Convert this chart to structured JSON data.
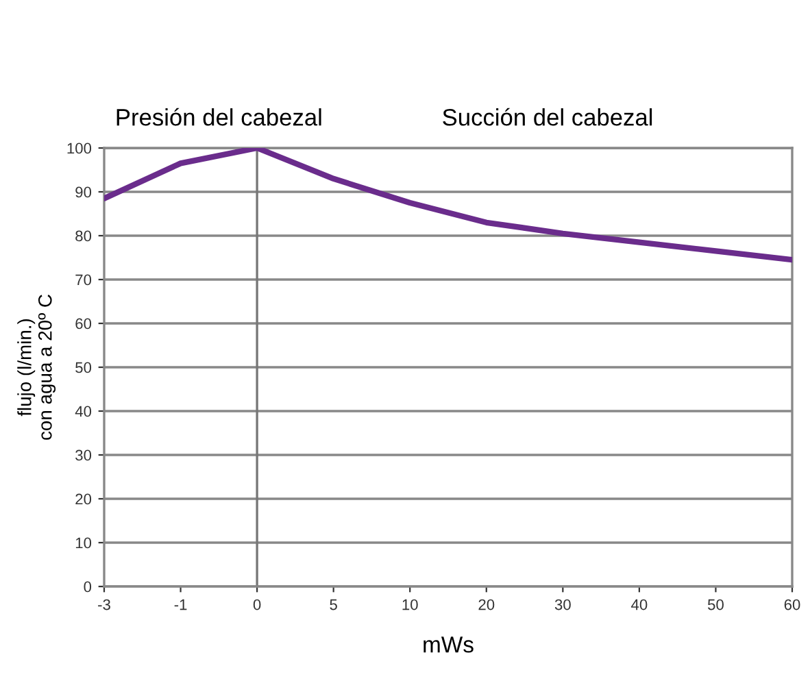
{
  "chart_data": {
    "type": "line",
    "xlabel": "mWs",
    "ylabel": "flujo (l/min.)\ncon agua a 20º C",
    "categories": [
      "-3",
      "-1",
      "0",
      "5",
      "10",
      "20",
      "30",
      "40",
      "50",
      "60"
    ],
    "series": [
      {
        "color": "#6a2c8c",
        "values": [
          88.5,
          96.5,
          100,
          93,
          87.5,
          83,
          80.5,
          78.5,
          76.5,
          74.5
        ]
      }
    ],
    "ylim": [
      0,
      100
    ],
    "yticks": [
      0,
      10,
      20,
      30,
      40,
      50,
      60,
      70,
      80,
      90,
      100
    ],
    "grid": "y",
    "ref_lines": [
      {
        "axis": "x",
        "value": "0",
        "color": "#777777"
      }
    ],
    "annotations": [
      "Presión del cabezal",
      "Succión del cabezal"
    ],
    "marker": "none",
    "line_style": "solid",
    "legend": false
  }
}
